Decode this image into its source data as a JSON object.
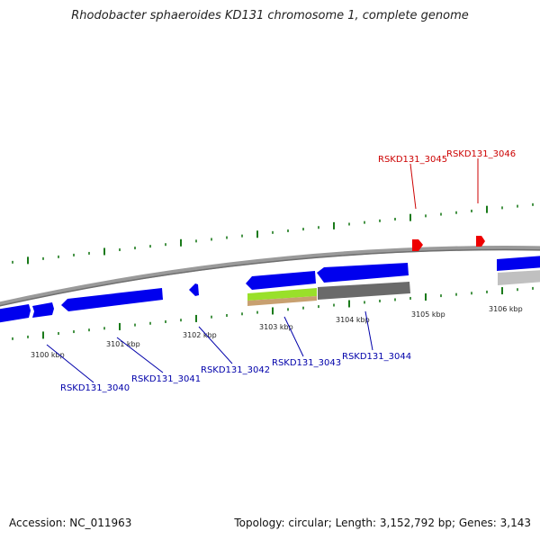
{
  "title": "Rhodobacter sphaeroides KD131 chromosome 1, complete genome",
  "footer": {
    "accession": "Accession: NC_011963",
    "summary": "Topology: circular; Length: 3,152,792 bp; Genes: 3,143"
  },
  "colors": {
    "forward_gene": "#0000ee",
    "reverse_gene": "#ee0000",
    "backbone": "#888888",
    "tick": "#1a7a1a",
    "label_blue": "#0000aa",
    "label_red": "#cc0000",
    "feature_green": "#99e02a",
    "feature_tan": "#c8a070",
    "feature_gray": "#666666",
    "feature_light_gray": "#bbbbbb"
  },
  "scale_labels": [
    {
      "text": "3100 kbp"
    },
    {
      "text": "3101 kbp"
    },
    {
      "text": "3102 kbp"
    },
    {
      "text": "3103 kbp"
    },
    {
      "text": "3104 kbp"
    },
    {
      "text": "3105 kbp"
    },
    {
      "text": "3106 kbp"
    }
  ],
  "gene_labels_forward": [
    {
      "text": "RSKD131_3040"
    },
    {
      "text": "RSKD131_3041"
    },
    {
      "text": "RSKD131_3042"
    },
    {
      "text": "RSKD131_3043"
    },
    {
      "text": "RSKD131_3044"
    }
  ],
  "gene_labels_reverse": [
    {
      "text": "RSKD131_3045"
    },
    {
      "text": "RSKD131_3046"
    }
  ]
}
